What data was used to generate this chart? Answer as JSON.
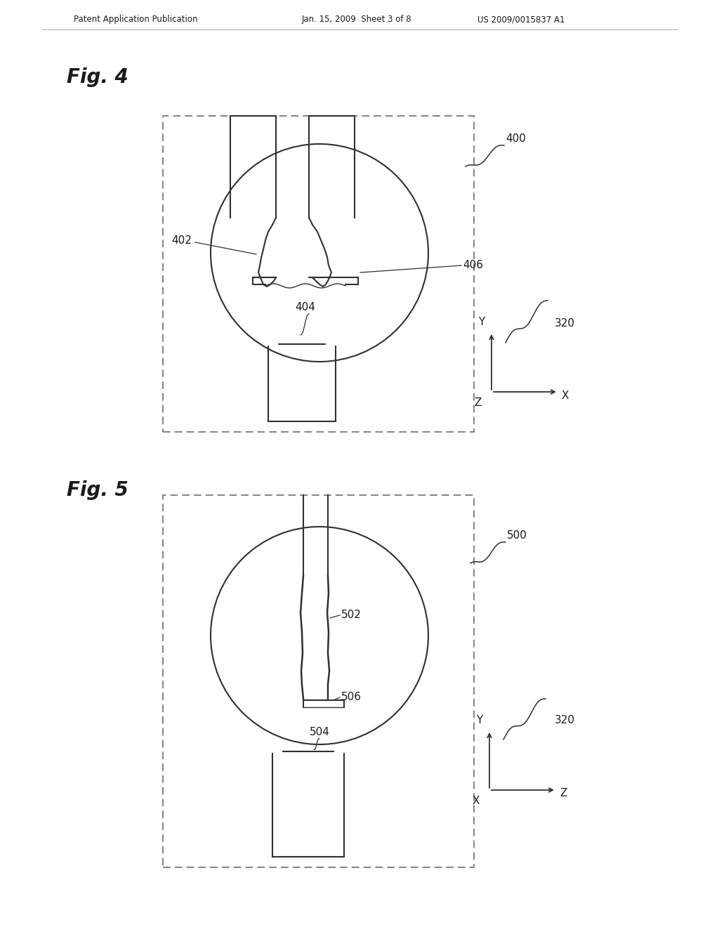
{
  "bg_color": "#ffffff",
  "header_left": "Patent Application Publication",
  "header_mid": "Jan. 15, 2009  Sheet 3 of 8",
  "header_right": "US 2009/0015837 A1",
  "fig4_label": "Fig. 4",
  "fig5_label": "Fig. 5",
  "line_color": "#303030",
  "dash_color": "#606060",
  "text_color": "#1a1a1a"
}
